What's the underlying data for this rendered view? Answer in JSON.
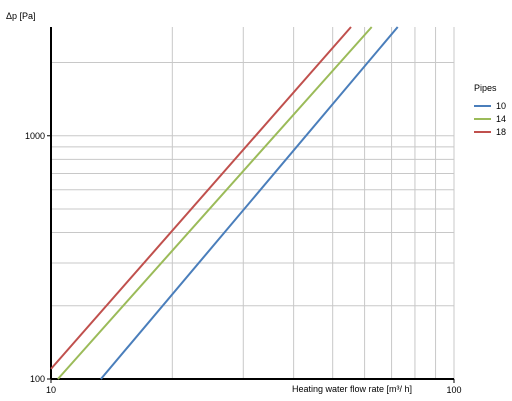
{
  "chart_data": {
    "type": "line",
    "title": "",
    "xlabel": "Heating water flow rate [m³/ h]",
    "ylabel": "Δp [Pa]",
    "x_scale": "log",
    "y_scale": "log",
    "xlim": [
      10,
      100
    ],
    "ylim": [
      100,
      2800
    ],
    "x_ticks": [
      {
        "value": 10,
        "label": "10"
      },
      {
        "value": 100,
        "label": "100"
      }
    ],
    "y_ticks": [
      {
        "value": 100,
        "label": "100"
      },
      {
        "value": 1000,
        "label": "1000"
      }
    ],
    "grid": true,
    "legend": {
      "title": "Pipes",
      "position": "right"
    },
    "series": [
      {
        "name": "10",
        "color": "#4a7ebb",
        "points": [
          [
            13.3,
            100
          ],
          [
            72.5,
            2800
          ]
        ]
      },
      {
        "name": "14",
        "color": "#9bbb59",
        "points": [
          [
            10.4,
            100
          ],
          [
            62.5,
            2800
          ]
        ]
      },
      {
        "name": "18",
        "color": "#c0504d",
        "points": [
          [
            10,
            110
          ],
          [
            55.5,
            2800
          ]
        ]
      }
    ]
  }
}
